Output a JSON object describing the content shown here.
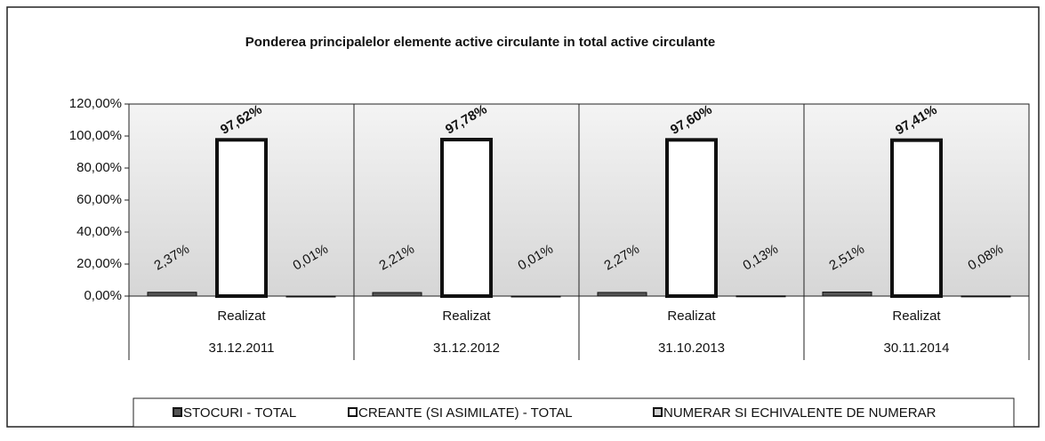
{
  "chart_data": {
    "type": "bar",
    "title": "Ponderea principalelor elemente active circulante in total active circulante",
    "categories": [
      [
        "Realizat",
        "31.12.2011"
      ],
      [
        "Realizat",
        "31.12.2012"
      ],
      [
        "Realizat",
        "31.10.2013"
      ],
      [
        "Realizat",
        "30.11.2014"
      ]
    ],
    "series": [
      {
        "name": "STOCURI - TOTAL",
        "color": "#555555",
        "values": [
          2.37,
          2.21,
          2.27,
          2.51
        ],
        "value_labels": [
          "2,37%",
          "2,21%",
          "2,27%",
          "2,51%"
        ]
      },
      {
        "name": "CREANTE (SI ASIMILATE) - TOTAL",
        "color": "#ffffff",
        "values": [
          97.62,
          97.78,
          97.6,
          97.41
        ],
        "value_labels": [
          "97,62%",
          "97,78%",
          "97,60%",
          "97,41%"
        ]
      },
      {
        "name": "NUMERAR SI ECHIVALENTE DE NUMERAR",
        "color": "#d0d0d0",
        "values": [
          0.01,
          0.01,
          0.13,
          0.08
        ],
        "value_labels": [
          "0,01%",
          "0,01%",
          "0,13%",
          "0,08%"
        ]
      }
    ],
    "ylim": [
      0,
      120
    ],
    "yticks": [
      {
        "value": 0,
        "label": "0,00%"
      },
      {
        "value": 20,
        "label": "20,00%"
      },
      {
        "value": 40,
        "label": "40,00%"
      },
      {
        "value": 60,
        "label": "60,00%"
      },
      {
        "value": 80,
        "label": "80,00%"
      },
      {
        "value": 100,
        "label": "100,00%"
      },
      {
        "value": 120,
        "label": "120,00%"
      }
    ],
    "grid": false,
    "legend": "bottom"
  }
}
